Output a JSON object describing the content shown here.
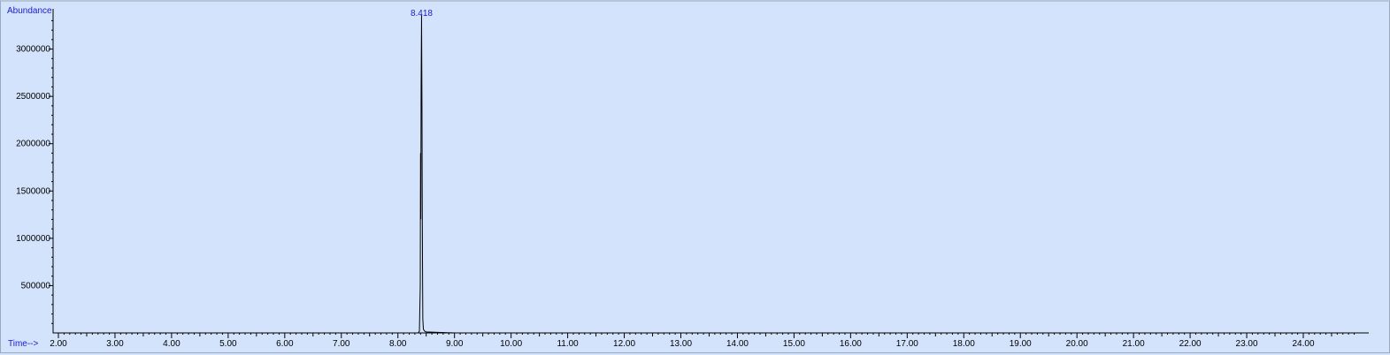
{
  "chart_data": {
    "type": "line",
    "y_axis_title": "Abundance",
    "x_axis_title": "Time-->",
    "xlim": [
      1.9,
      25.0
    ],
    "ylim": [
      0,
      3360000
    ],
    "x_ticks": [
      2,
      3,
      4,
      5,
      6,
      7,
      8,
      9,
      10,
      11,
      12,
      13,
      14,
      15,
      16,
      17,
      18,
      19,
      20,
      21,
      22,
      23,
      24
    ],
    "x_tick_labels": [
      "2.00",
      "3.00",
      "4.00",
      "5.00",
      "6.00",
      "7.00",
      "8.00",
      "9.00",
      "10.00",
      "11.00",
      "12.00",
      "13.00",
      "14.00",
      "15.00",
      "16.00",
      "17.00",
      "18.00",
      "19.00",
      "20.00",
      "21.00",
      "22.00",
      "23.00",
      "24.00"
    ],
    "y_ticks": [
      500000,
      1000000,
      1500000,
      2000000,
      2500000,
      3000000
    ],
    "y_tick_labels": [
      "500000",
      "1000000",
      "1500000",
      "2000000",
      "2500000",
      "3000000"
    ],
    "series": [
      {
        "x": [
          1.9,
          8.0,
          8.36,
          8.38,
          8.395,
          8.4,
          8.405,
          8.41,
          8.418,
          8.425,
          8.43,
          8.435,
          8.44,
          8.45,
          8.47,
          8.5,
          9.0,
          25.0
        ],
        "y": [
          0,
          0,
          0,
          20000,
          500000,
          1900000,
          1200000,
          2600000,
          3360000,
          2400000,
          1400000,
          700000,
          150000,
          40000,
          20000,
          10000,
          0,
          0
        ],
        "color": "#000000"
      }
    ],
    "peak_labels": [
      {
        "x": 8.418,
        "text": "8.418"
      }
    ],
    "grid": false,
    "background_color": "#d4e3fc",
    "label_color": "#1a1ad0"
  }
}
